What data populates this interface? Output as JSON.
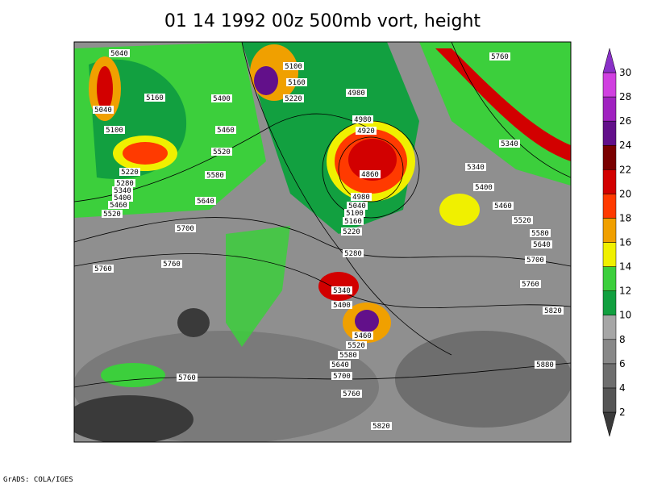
{
  "title": "01 14 1992 00z 500mb vort, height",
  "footer": "GrADS: COLA/IGES",
  "contour_labels": [
    5040,
    5040,
    5160,
    5100,
    5220,
    5280,
    5340,
    5400,
    5460,
    5520,
    5400,
    5460,
    5520,
    5580,
    5640,
    5700,
    5760,
    5760,
    5760,
    5100,
    5160,
    5220,
    4980,
    4980,
    4920,
    4860,
    4980,
    5040,
    5100,
    5160,
    5220,
    5280,
    5340,
    5400,
    5460,
    5520,
    5580,
    5640,
    5700,
    5760,
    5820,
    5760,
    5340,
    5340,
    5400,
    5460,
    5520,
    5580,
    5640,
    5700,
    5760,
    5820,
    5880
  ],
  "colorbar": {
    "levels": [
      2,
      4,
      6,
      8,
      10,
      12,
      14,
      16,
      18,
      20,
      22,
      24,
      26,
      28,
      30
    ],
    "colors": [
      "#3a3a3a",
      "#555555",
      "#6e6e6e",
      "#888888",
      "#a6a6a6",
      "#12a040",
      "#3ccf3c",
      "#f0f000",
      "#f0a000",
      "#ff3a00",
      "#d20000",
      "#7a0000",
      "#62108a",
      "#a022c0",
      "#d040e0",
      "#8a30c8"
    ]
  }
}
